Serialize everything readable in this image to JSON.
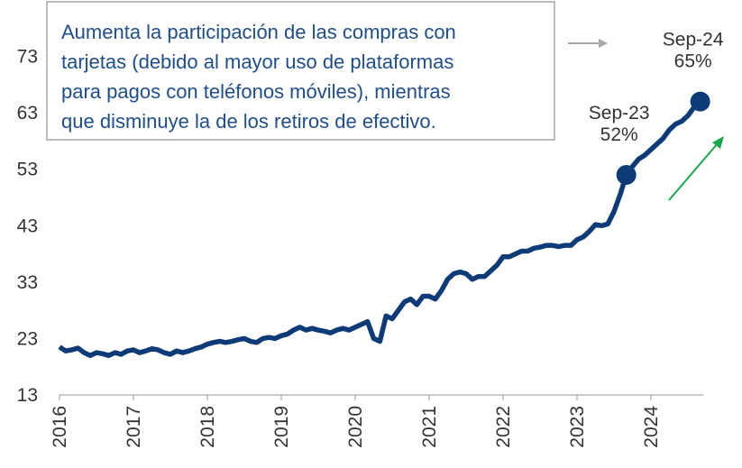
{
  "chart_data": {
    "type": "line",
    "annotation": [
      "Aumenta la participación de las compras con",
      "tarjetas (debido al mayor uso de plataformas",
      "para pagos con teléfonos móviles), mientras",
      "que disminuye la de los retiros de efectivo."
    ],
    "categories": [
      "2016",
      null,
      null,
      null,
      null,
      null,
      null,
      null,
      null,
      null,
      null,
      null,
      "2017",
      null,
      null,
      null,
      null,
      null,
      null,
      null,
      null,
      null,
      null,
      null,
      "2018",
      null,
      null,
      null,
      null,
      null,
      null,
      null,
      null,
      null,
      null,
      null,
      "2019",
      null,
      null,
      null,
      null,
      null,
      null,
      null,
      null,
      null,
      null,
      null,
      "2020",
      null,
      null,
      null,
      null,
      null,
      null,
      null,
      null,
      null,
      null,
      null,
      "2021",
      null,
      null,
      null,
      null,
      null,
      null,
      null,
      null,
      null,
      null,
      null,
      "2022",
      null,
      null,
      null,
      null,
      null,
      null,
      null,
      null,
      null,
      null,
      null,
      "2023",
      null,
      null,
      null,
      null,
      null,
      null,
      null,
      null,
      null,
      null,
      null,
      "2024",
      null,
      null,
      null,
      null,
      null,
      null,
      null,
      null
    ],
    "series": [
      {
        "color": "#0d3b78",
        "values": [
          21.5,
          20.8,
          21.0,
          21.3,
          20.5,
          20.0,
          20.5,
          20.3,
          20.0,
          20.5,
          20.2,
          20.8,
          21.0,
          20.5,
          20.8,
          21.2,
          21.0,
          20.5,
          20.2,
          20.8,
          20.5,
          20.8,
          21.2,
          21.5,
          22.0,
          22.3,
          22.5,
          22.3,
          22.5,
          22.8,
          23.0,
          22.5,
          22.3,
          23.0,
          23.2,
          23.0,
          23.5,
          23.8,
          24.5,
          25.0,
          24.5,
          24.8,
          24.5,
          24.3,
          24.0,
          24.5,
          24.8,
          24.5,
          25.0,
          25.5,
          26.0,
          23.0,
          22.5,
          27.0,
          26.5,
          28.0,
          29.5,
          30.0,
          29.0,
          30.5,
          30.5,
          30.0,
          31.5,
          33.5,
          34.5,
          34.8,
          34.5,
          33.5,
          34.0,
          34.0,
          35.0,
          36.0,
          37.5,
          37.5,
          38.0,
          38.5,
          38.5,
          39.0,
          39.2,
          39.5,
          39.5,
          39.3,
          39.5,
          39.5,
          40.5,
          41.0,
          42.0,
          43.2,
          43.0,
          43.3,
          45.5,
          48.5,
          52.0,
          53.5,
          54.8,
          55.5,
          56.5,
          57.5,
          58.5,
          60.0,
          61.0,
          61.5,
          62.5,
          64.0,
          65.0
        ]
      }
    ],
    "highlights": [
      {
        "name": "Sep-23",
        "value": 52,
        "label": "52%"
      },
      {
        "name": "Sep-24",
        "value": 65,
        "label": "65%"
      }
    ],
    "ylim": [
      13,
      83
    ],
    "yticks": [
      13,
      23,
      33,
      43,
      53,
      63,
      73
    ],
    "grid": false
  }
}
